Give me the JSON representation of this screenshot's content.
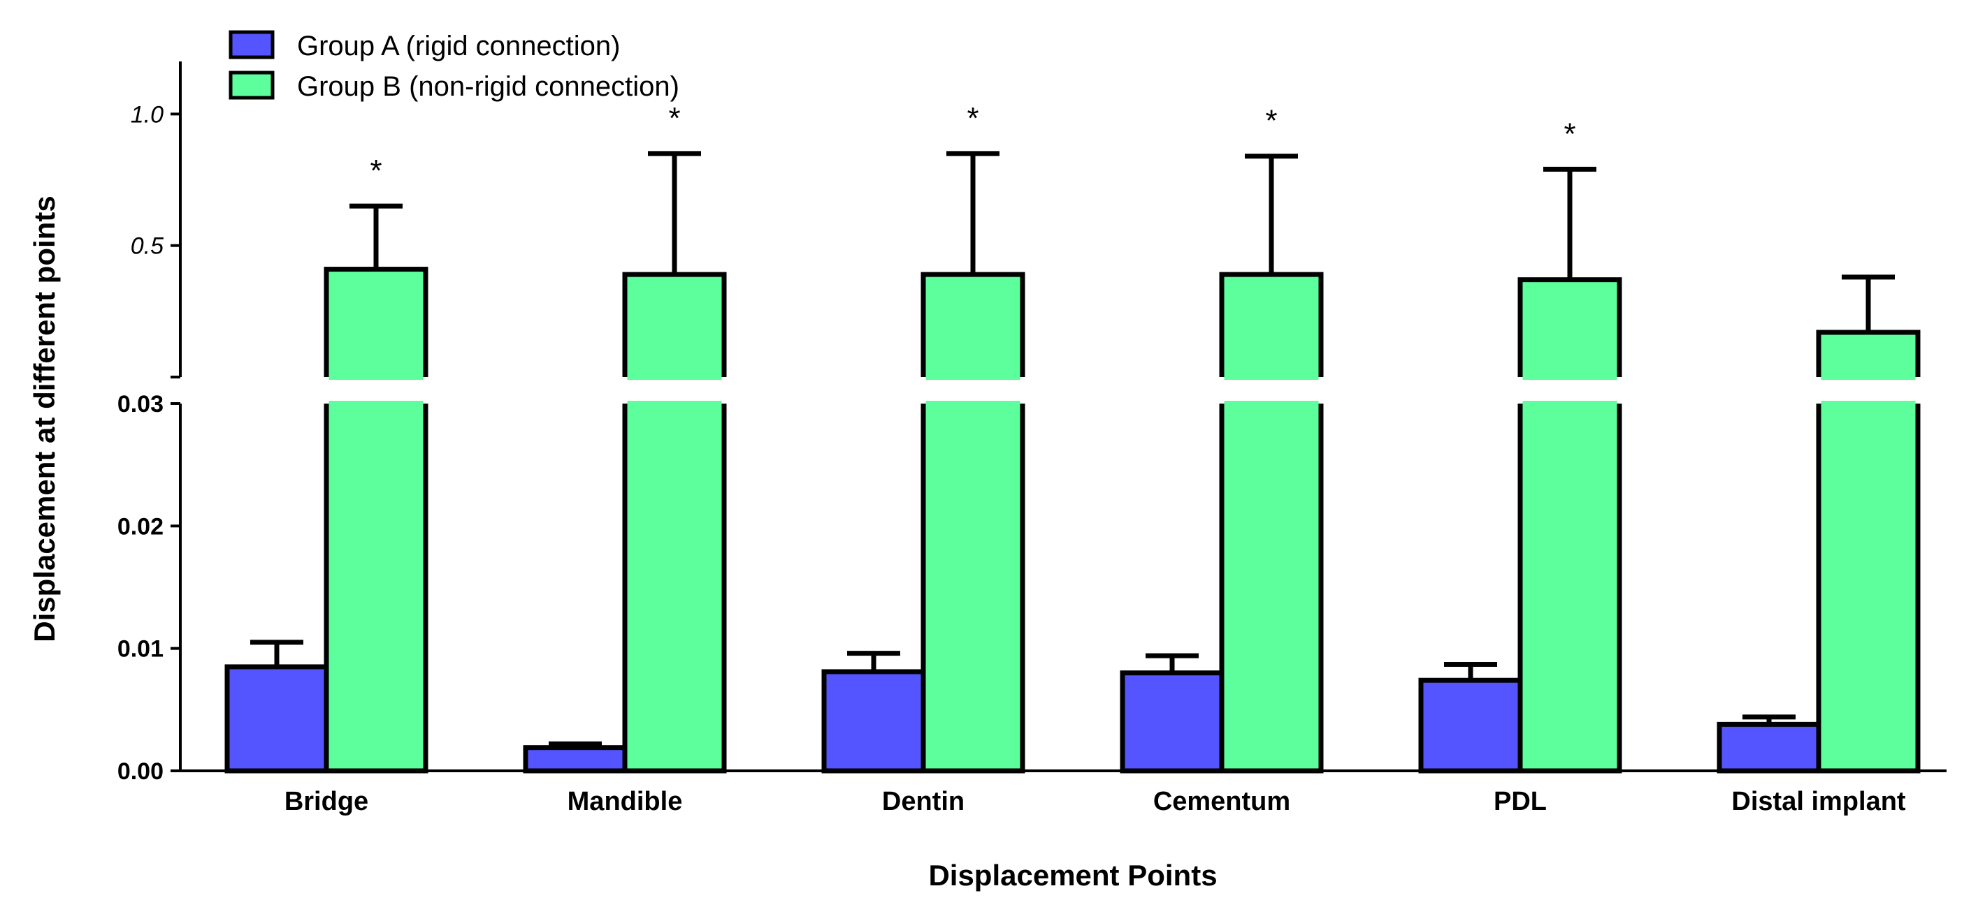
{
  "chart_data": {
    "type": "bar",
    "xlabel": "Displacement Points",
    "ylabel": "Displacement at different points",
    "categories": [
      "Bridge",
      "Mandible",
      "Dentin",
      "Cementum",
      "PDL",
      "Distal implant"
    ],
    "series": [
      {
        "name": "Group A (rigid connection)",
        "color": "#5555ff",
        "values": [
          0.0085,
          0.0019,
          0.0081,
          0.008,
          0.0074,
          0.0038
        ],
        "errors": [
          0.002,
          0.0003,
          0.0015,
          0.0014,
          0.0013,
          0.0006
        ]
      },
      {
        "name": "Group B (non-rigid connection)",
        "color": "#5cff9c",
        "values": [
          0.41,
          0.39,
          0.39,
          0.39,
          0.37,
          0.17
        ],
        "errors": [
          0.24,
          0.46,
          0.46,
          0.45,
          0.42,
          0.21
        ]
      }
    ],
    "significance": [
      "*",
      "*",
      "*",
      "*",
      "*",
      ""
    ],
    "y_axis_lower": {
      "range": [
        0,
        0.03
      ],
      "ticks": [
        0,
        0.01,
        0.02,
        0.03
      ],
      "tick_labels": [
        "0.00",
        "0.01",
        "0.02",
        "0.03"
      ]
    },
    "y_axis_upper": {
      "range": [
        0,
        1.2
      ],
      "ticks": [
        0.5,
        1.0
      ],
      "tick_labels": [
        "0.5",
        "1.0"
      ]
    },
    "legend_position": "top-left",
    "axis_break": true
  }
}
